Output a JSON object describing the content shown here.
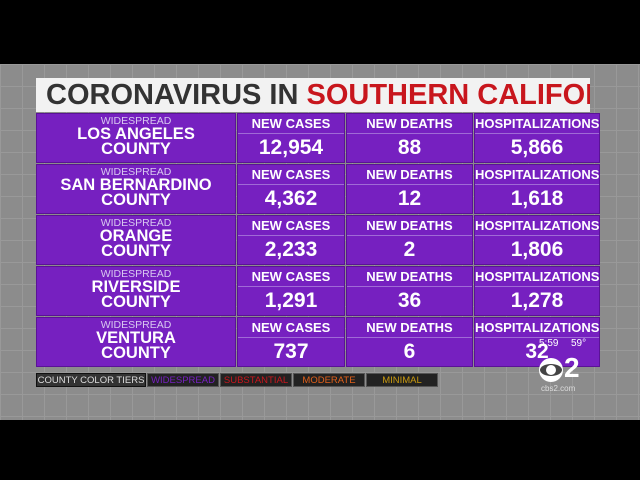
{
  "header": {
    "title_part1": "CORONAVIRUS IN",
    "title_part2": "SOUTHERN CALIFORNIA"
  },
  "table": {
    "rows": [
      {
        "tier": "WIDESPREAD",
        "county": "LOS ANGELES",
        "suffix": "COUNTY",
        "cases_label": "NEW CASES",
        "cases": "12,954",
        "deaths_label": "NEW DEATHS",
        "deaths": "88",
        "hosp_label": "HOSPITALIZATIONS",
        "hosp": "5,866"
      },
      {
        "tier": "WIDESPREAD",
        "county": "SAN BERNARDINO",
        "suffix": "COUNTY",
        "cases_label": "NEW CASES",
        "cases": "4,362",
        "deaths_label": "NEW DEATHS",
        "deaths": "12",
        "hosp_label": "HOSPITALIZATIONS",
        "hosp": "1,618"
      },
      {
        "tier": "WIDESPREAD",
        "county": "ORANGE",
        "suffix": "COUNTY",
        "cases_label": "NEW CASES",
        "cases": "2,233",
        "deaths_label": "NEW DEATHS",
        "deaths": "2",
        "hosp_label": "HOSPITALIZATIONS",
        "hosp": "1,806"
      },
      {
        "tier": "WIDESPREAD",
        "county": "RIVERSIDE",
        "suffix": "COUNTY",
        "cases_label": "NEW CASES",
        "cases": "1,291",
        "deaths_label": "NEW DEATHS",
        "deaths": "36",
        "hosp_label": "HOSPITALIZATIONS",
        "hosp": "1,278"
      },
      {
        "tier": "WIDESPREAD",
        "county": "VENTURA",
        "suffix": "COUNTY",
        "cases_label": "NEW CASES",
        "cases": "737",
        "deaths_label": "NEW DEATHS",
        "deaths": "6",
        "hosp_label": "HOSPITALIZATIONS",
        "hosp": "32"
      }
    ]
  },
  "legend": {
    "items": [
      {
        "label": "COUNTY COLOR TIERS",
        "color": "#111111"
      },
      {
        "label": "WIDESPREAD",
        "color": "#7620c0"
      },
      {
        "label": "SUBSTANTIAL",
        "color": "#c8161d"
      },
      {
        "label": "MODERATE",
        "color": "#e0601a"
      },
      {
        "label": "MINIMAL",
        "color": "#c99a10"
      }
    ]
  },
  "logo": {
    "time": "5:59",
    "temp": "59°",
    "channel": "2",
    "site": "cbs2.com"
  }
}
